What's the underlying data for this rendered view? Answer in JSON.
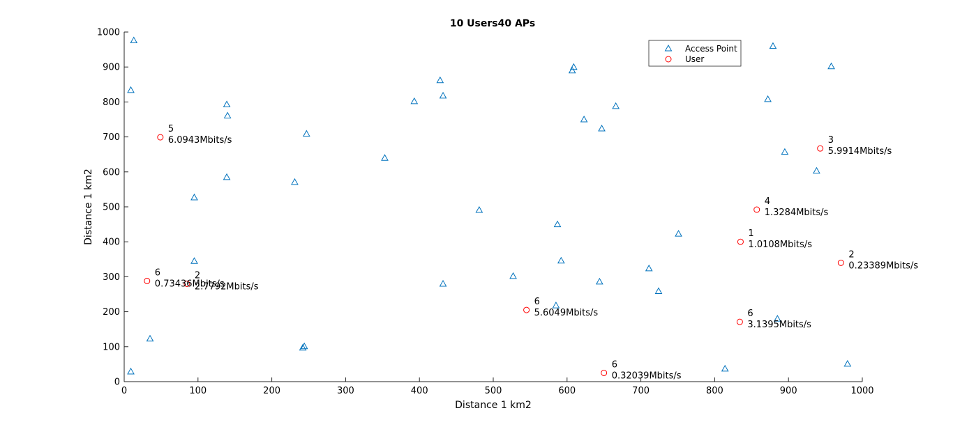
{
  "chart_data": {
    "type": "scatter",
    "title": "10 Users40 APs",
    "xlabel": "Distance 1 km2",
    "ylabel": "Distance 1 km2",
    "xlim": [
      0,
      1000
    ],
    "ylim": [
      0,
      1000
    ],
    "xticks": [
      0,
      100,
      200,
      300,
      400,
      500,
      600,
      700,
      800,
      900,
      1000
    ],
    "yticks": [
      0,
      100,
      200,
      300,
      400,
      500,
      600,
      700,
      800,
      900,
      1000
    ],
    "grid": false,
    "legend_position": "top-right",
    "legend": [
      "Access Point",
      "User"
    ],
    "series": [
      {
        "name": "Access Point",
        "marker": "triangle",
        "color": "#0072BD",
        "points": [
          [
            13,
            976
          ],
          [
            9,
            834
          ],
          [
            139,
            793
          ],
          [
            140,
            761
          ],
          [
            247,
            709
          ],
          [
            95,
            527
          ],
          [
            139,
            585
          ],
          [
            231,
            571
          ],
          [
            353,
            640
          ],
          [
            393,
            802
          ],
          [
            428,
            862
          ],
          [
            432,
            818
          ],
          [
            481,
            491
          ],
          [
            587,
            450
          ],
          [
            609,
            900
          ],
          [
            607,
            890
          ],
          [
            623,
            750
          ],
          [
            647,
            724
          ],
          [
            666,
            788
          ],
          [
            751,
            423
          ],
          [
            872,
            808
          ],
          [
            879,
            960
          ],
          [
            895,
            657
          ],
          [
            938,
            603
          ],
          [
            958,
            902
          ],
          [
            95,
            345
          ],
          [
            35,
            123
          ],
          [
            9,
            29
          ],
          [
            242,
            97
          ],
          [
            244,
            101
          ],
          [
            432,
            280
          ],
          [
            527,
            302
          ],
          [
            592,
            346
          ],
          [
            585,
            218
          ],
          [
            644,
            286
          ],
          [
            711,
            324
          ],
          [
            724,
            259
          ],
          [
            885,
            180
          ],
          [
            814,
            37
          ],
          [
            980,
            51
          ]
        ]
      },
      {
        "name": "User",
        "marker": "circle",
        "color": "#FF0000",
        "points": [
          {
            "x": 49,
            "y": 699,
            "ap": "5",
            "rate": "6.0943Mbits/s"
          },
          {
            "x": 943,
            "y": 667,
            "ap": "3",
            "rate": "5.9914Mbits/s"
          },
          {
            "x": 857,
            "y": 492,
            "ap": "4",
            "rate": "1.3284Mbits/s"
          },
          {
            "x": 835,
            "y": 400,
            "ap": "1",
            "rate": "1.0108Mbits/s"
          },
          {
            "x": 971,
            "y": 340,
            "ap": "2",
            "rate": "0.23389Mbits/s"
          },
          {
            "x": 31,
            "y": 288,
            "ap": "6",
            "rate": "0.73436Mbits/s"
          },
          {
            "x": 85,
            "y": 280,
            "ap": "2",
            "rate": "2.7792Mbits/s"
          },
          {
            "x": 545,
            "y": 205,
            "ap": "6",
            "rate": "5.6049Mbits/s"
          },
          {
            "x": 834,
            "y": 171,
            "ap": "6",
            "rate": "3.1395Mbits/s"
          },
          {
            "x": 650,
            "y": 25,
            "ap": "6",
            "rate": "0.32039Mbits/s"
          }
        ]
      }
    ]
  }
}
